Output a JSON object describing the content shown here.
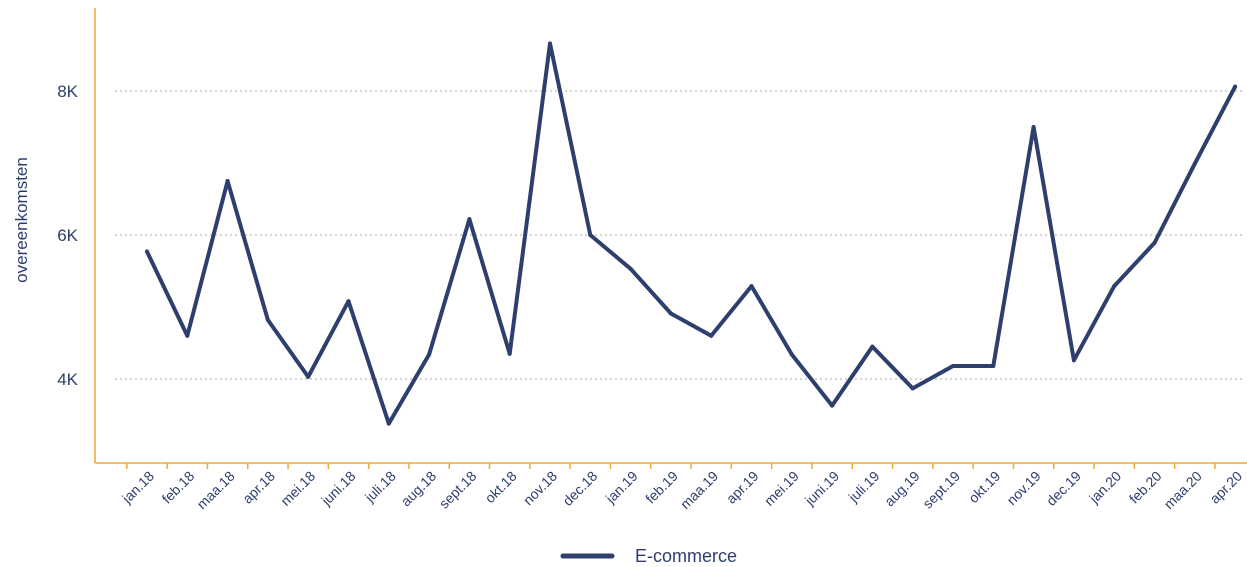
{
  "colors": {
    "series": "#2e3f6e",
    "axis": "#f0a830",
    "grid": "#bbbbbb",
    "text": "#2e3f6e"
  },
  "chart_data": {
    "type": "line",
    "title": "",
    "xlabel": "",
    "ylabel": "overeenkomsten",
    "ylim": [
      2800,
      8900
    ],
    "yticks": [
      4000,
      6000,
      8000
    ],
    "ytick_labels": [
      "4K",
      "6K",
      "8K"
    ],
    "grid": "horizontal-dotted",
    "legend_position": "bottom-center",
    "categories": [
      "jan.18",
      "feb.18",
      "maa.18",
      "apr.18",
      "mei.18",
      "juni.18",
      "juli.18",
      "aug.18",
      "sept.18",
      "okt.18",
      "nov.18",
      "dec.18",
      "jan.19",
      "feb.19",
      "maa.19",
      "apr.19",
      "mei.19",
      "juni.19",
      "juli.19",
      "aug.19",
      "sept.19",
      "okt.19",
      "nov.19",
      "dec.19",
      "jan.20",
      "feb.20",
      "maa.20",
      "apr.20"
    ],
    "series": [
      {
        "name": "E-commerce",
        "values": [
          5770,
          4600,
          6750,
          4820,
          4030,
          5080,
          3380,
          4340,
          6220,
          4350,
          8660,
          6000,
          5530,
          4910,
          4600,
          5290,
          4340,
          3630,
          4450,
          3870,
          4180,
          4180,
          7500,
          4260,
          5290,
          5890,
          6990,
          8060
        ]
      }
    ]
  }
}
